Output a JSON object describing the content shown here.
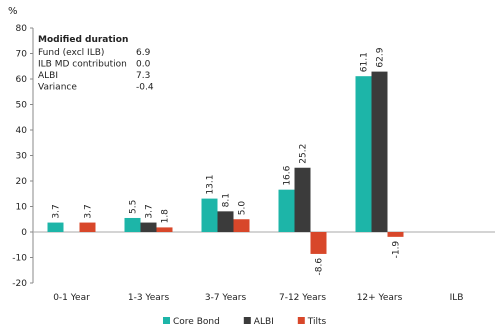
{
  "chart_data": {
    "type": "bar",
    "y_label": "%",
    "categories": [
      "0-1 Year",
      "1-3 Years",
      "3-7 Years",
      "7-12 Years",
      "12+ Years",
      "ILB"
    ],
    "series": [
      {
        "name": "Core Bond",
        "color": "#1db5a8",
        "values": [
          3.7,
          5.5,
          13.1,
          16.6,
          61.1,
          null
        ],
        "value_labels": [
          "3.7",
          "5.5",
          "13.1",
          "16.6",
          "61.1",
          null
        ]
      },
      {
        "name": "ALBI",
        "color": "#3b3b3b",
        "values": [
          null,
          3.7,
          8.1,
          25.2,
          62.9,
          null
        ],
        "value_labels": [
          null,
          "3.7",
          "8.1",
          "25.2",
          "62.9",
          null
        ]
      },
      {
        "name": "Tilts",
        "color": "#d8472a",
        "values": [
          3.7,
          1.8,
          5.0,
          -8.6,
          -1.9,
          null
        ],
        "value_labels": [
          "3.7",
          "1.8",
          "5.0",
          "-8.6",
          "-1.9",
          null
        ]
      }
    ],
    "ylim": [
      -20,
      80
    ],
    "yticks": [
      -20,
      -10,
      0,
      10,
      20,
      30,
      40,
      50,
      60,
      70,
      80
    ],
    "annotation": {
      "title": "Modified duration",
      "rows": [
        {
          "label": "Fund (excl ILB)",
          "value": "6.9"
        },
        {
          "label": "ILB MD contribution",
          "value": "0.0"
        },
        {
          "label": "ALBI",
          "value": "7.3"
        },
        {
          "label": "Variance",
          "value": "-0.4"
        }
      ]
    }
  }
}
